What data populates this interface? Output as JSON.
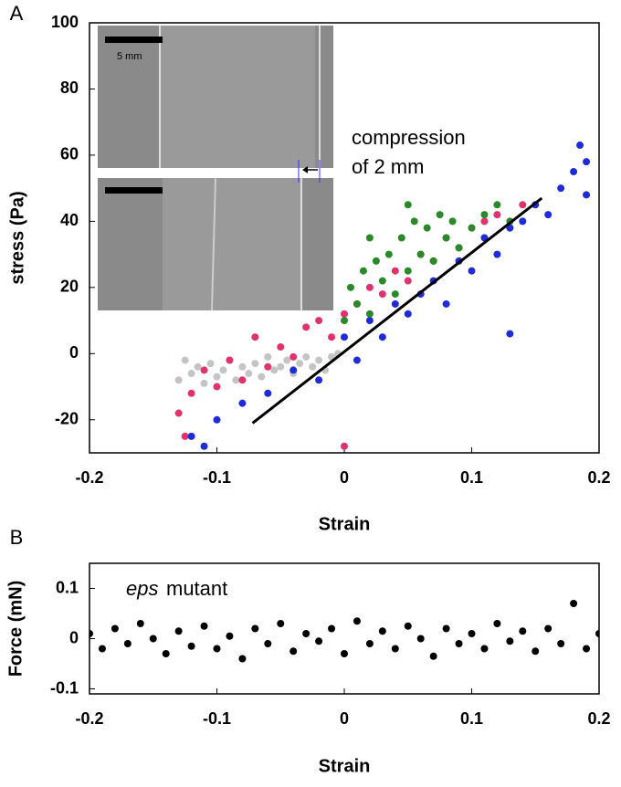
{
  "chart_data": [
    {
      "type": "scatter",
      "panel_label": "A",
      "xlabel": "Strain",
      "ylabel": "stress (Pa)",
      "xlim": [
        -0.2,
        0.2
      ],
      "xticks": [
        -0.2,
        -0.1,
        0,
        0.1,
        0.2
      ],
      "ylim": [
        -30,
        100
      ],
      "yticks": [
        -20,
        0,
        20,
        40,
        60,
        80,
        100
      ],
      "annotations": [
        "compression",
        "of 2 mm"
      ],
      "inset_label": "5 mm",
      "series": [
        {
          "color": "#c4c4c4",
          "x": [
            -0.13,
            -0.125,
            -0.12,
            -0.115,
            -0.11,
            -0.105,
            -0.1,
            -0.095,
            -0.09,
            -0.085,
            -0.08,
            -0.075,
            -0.07,
            -0.065,
            -0.06,
            -0.055,
            -0.05,
            -0.045,
            -0.04,
            -0.035,
            -0.03,
            -0.025,
            -0.02,
            -0.015,
            -0.01,
            -0.005
          ],
          "values": [
            -8,
            -2,
            -6,
            -4,
            -9,
            -3,
            -7,
            -5,
            -2,
            -8,
            -4,
            -6,
            -3,
            -7,
            -1,
            -5,
            -4,
            -2,
            -6,
            -3,
            -1,
            -4,
            -2,
            -5,
            -1,
            0
          ]
        },
        {
          "color": "#e0336e",
          "x": [
            -0.13,
            -0.12,
            -0.11,
            -0.1,
            -0.09,
            -0.08,
            -0.07,
            -0.06,
            -0.05,
            -0.04,
            -0.03,
            -0.02,
            -0.01,
            0,
            0.01,
            0.02,
            0.03,
            0.04,
            0.05,
            0.06,
            0.07,
            0.08,
            0.09,
            0.1,
            0.11,
            0.12,
            0.13,
            0.14,
            -0.125,
            0.0
          ],
          "values": [
            -18,
            -12,
            -5,
            -10,
            -2,
            -8,
            5,
            -4,
            2,
            -1,
            8,
            10,
            5,
            12,
            15,
            20,
            18,
            25,
            22,
            30,
            28,
            35,
            32,
            38,
            40,
            42,
            38,
            45,
            -25,
            -28
          ]
        },
        {
          "color": "#1f2bd6",
          "x": [
            -0.12,
            -0.1,
            -0.08,
            -0.06,
            -0.04,
            -0.02,
            0,
            0.01,
            0.02,
            0.03,
            0.04,
            0.05,
            0.06,
            0.07,
            0.08,
            0.09,
            0.1,
            0.11,
            0.12,
            0.13,
            0.14,
            0.15,
            0.16,
            0.17,
            0.18,
            0.19,
            0.19,
            0.185,
            -0.11,
            0.13
          ],
          "values": [
            -25,
            -20,
            -15,
            -12,
            -5,
            -8,
            5,
            -2,
            10,
            5,
            15,
            12,
            18,
            22,
            15,
            28,
            25,
            35,
            30,
            38,
            40,
            45,
            42,
            50,
            55,
            58,
            48,
            63,
            -28,
            6
          ]
        },
        {
          "color": "#2a8a2a",
          "x": [
            0,
            0.005,
            0.01,
            0.015,
            0.02,
            0.025,
            0.03,
            0.035,
            0.04,
            0.045,
            0.05,
            0.055,
            0.06,
            0.065,
            0.07,
            0.075,
            0.08,
            0.085,
            0.09,
            0.1,
            0.11,
            0.12,
            0.13,
            0.05,
            0.02
          ],
          "values": [
            10,
            20,
            15,
            25,
            12,
            28,
            22,
            30,
            18,
            35,
            25,
            40,
            30,
            38,
            28,
            42,
            35,
            40,
            32,
            38,
            42,
            45,
            40,
            45,
            35
          ]
        },
        {
          "type": "line",
          "color": "#000000",
          "x": [
            -0.072,
            0.155
          ],
          "values": [
            -21,
            47
          ]
        }
      ]
    },
    {
      "type": "scatter",
      "panel_label": "B",
      "xlabel": "Strain",
      "ylabel": "Force (mN)",
      "xlim": [
        -0.2,
        0.2
      ],
      "xticks": [
        -0.2,
        -0.1,
        0,
        0.1,
        0.2
      ],
      "ylim": [
        -0.11,
        0.15
      ],
      "yticks": [
        -0.1,
        0,
        0.1
      ],
      "annotation_italic": "eps",
      "annotation": "mutant",
      "series": [
        {
          "color": "#000000",
          "x": [
            -0.2,
            -0.19,
            -0.18,
            -0.17,
            -0.16,
            -0.15,
            -0.14,
            -0.13,
            -0.12,
            -0.11,
            -0.1,
            -0.09,
            -0.08,
            -0.07,
            -0.06,
            -0.05,
            -0.04,
            -0.03,
            -0.02,
            -0.01,
            0,
            0.01,
            0.02,
            0.03,
            0.04,
            0.05,
            0.06,
            0.07,
            0.08,
            0.09,
            0.1,
            0.11,
            0.12,
            0.13,
            0.14,
            0.15,
            0.16,
            0.17,
            0.18,
            0.19,
            0.2
          ],
          "values": [
            0.01,
            -0.02,
            0.02,
            -0.01,
            0.03,
            0,
            -0.03,
            0.015,
            -0.015,
            0.025,
            -0.02,
            0.005,
            -0.04,
            0.02,
            -0.01,
            0.03,
            -0.025,
            0.01,
            -0.005,
            0.02,
            -0.03,
            0.035,
            -0.01,
            0.015,
            -0.02,
            0.025,
            0,
            -0.035,
            0.02,
            -0.01,
            0.01,
            -0.02,
            0.03,
            -0.005,
            0.015,
            -0.025,
            0.02,
            -0.01,
            0.07,
            -0.02,
            0.01
          ]
        }
      ]
    }
  ]
}
